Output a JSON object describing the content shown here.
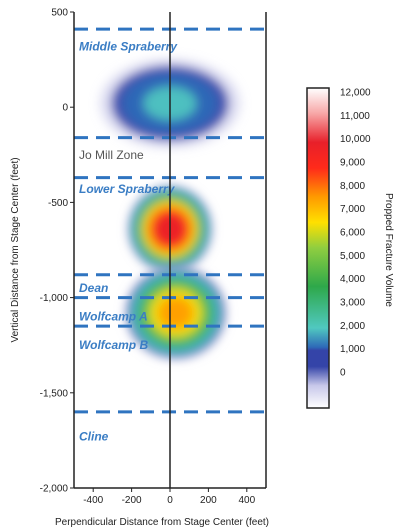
{
  "chart_data": {
    "type": "heatmap",
    "xlabel": "Perpendicular Distance from Stage Center (feet)",
    "ylabel": "Vertical Distance from Stage Center (feet)",
    "xlim": [
      -500,
      500
    ],
    "ylim": [
      -2000,
      500
    ],
    "x_ticks": [
      "-400",
      "-200",
      "0",
      "200",
      "400"
    ],
    "y_ticks": [
      "500",
      "0",
      "-500",
      "-1,000",
      "-1,500",
      "-2,000"
    ],
    "y_tick_values": [
      500,
      0,
      -500,
      -1000,
      -1500,
      -2000
    ],
    "x_tick_values": [
      -400,
      -200,
      0,
      200,
      400
    ],
    "zones": [
      {
        "label": "Middle Spraberry",
        "label_y": 320,
        "top_line_y": 410,
        "style": "bold"
      },
      {
        "label": "Jo Mill Zone",
        "label_y": -250,
        "top_line_y": -160,
        "style": "plain"
      },
      {
        "label": "Lower Spraberry",
        "label_y": -430,
        "top_line_y": -370,
        "style": "bold"
      },
      {
        "label": "Dean",
        "label_y": -950,
        "top_line_y": -880,
        "style": "bold"
      },
      {
        "label": "Wolfcamp A",
        "label_y": -1100,
        "top_line_y": -1000,
        "style": "bold"
      },
      {
        "label": "Wolfcamp B",
        "label_y": -1250,
        "top_line_y": -1150,
        "style": "bold"
      },
      {
        "label": "Cline",
        "label_y": -1730,
        "top_line_y": -1600,
        "style": "bold"
      }
    ],
    "blobs": [
      {
        "x": 0,
        "y": 20,
        "rx": 420,
        "ry": 270,
        "peak": 3000
      },
      {
        "x": 0,
        "y": -640,
        "rx": 230,
        "ry": 240,
        "peak": 10000
      },
      {
        "x": 30,
        "y": -1080,
        "rx": 280,
        "ry": 260,
        "peak": 8000
      }
    ],
    "colorbar": {
      "label": "Propped Fracture Volume",
      "min": 0,
      "max": 12000,
      "ticks": [
        "12,000",
        "11,000",
        "10,000",
        "9,000",
        "8,000",
        "7,000",
        "6,000",
        "5,000",
        "4,000",
        "3,000",
        "2,000",
        "1,000",
        "0"
      ],
      "tick_values": [
        12000,
        11000,
        10000,
        9000,
        8000,
        7000,
        6000,
        5000,
        4000,
        3000,
        2000,
        1000,
        0
      ]
    },
    "colors": {
      "line": "#2f74c0",
      "axis": "#222222",
      "scale": [
        "#ffffff",
        "#c8c8ea",
        "#3444a8",
        "#2e6ab8",
        "#50c8c0",
        "#2ea84a",
        "#8fce40",
        "#ffe000",
        "#ff9a00",
        "#ff2a1a",
        "#e8202a",
        "#f7a6a6",
        "#ffffff"
      ]
    }
  }
}
